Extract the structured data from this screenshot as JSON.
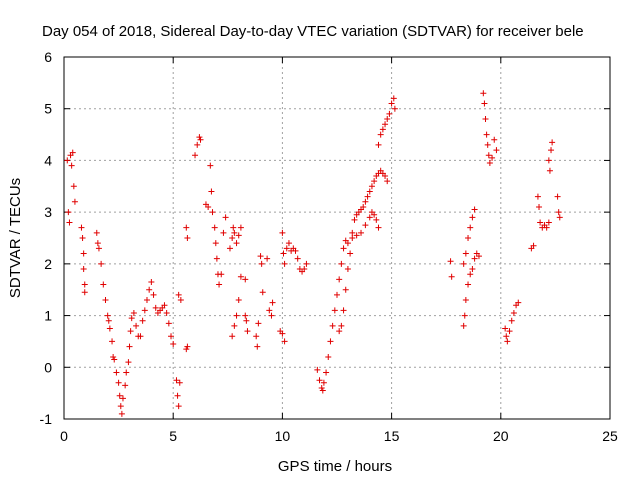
{
  "chart_data": {
    "type": "scatter",
    "title": "Day 054 of 2018, Sidereal Day-to-day VTEC variation (SDTVAR) for receiver bele",
    "xlabel": "GPS time / hours",
    "ylabel": "SDTVAR / TECUs",
    "xlim": [
      0,
      25
    ],
    "ylim": [
      -1,
      6
    ],
    "xticks": [
      "0",
      "5",
      "10",
      "15",
      "20",
      "25"
    ],
    "yticks": [
      "-1",
      "0",
      "1",
      "2",
      "3",
      "4",
      "5",
      "6"
    ],
    "grid": true,
    "marker": "+",
    "color": "#e00000",
    "series": [
      {
        "name": "SDTVAR",
        "points": [
          [
            0.15,
            4.0
          ],
          [
            0.2,
            3.0
          ],
          [
            0.25,
            2.8
          ],
          [
            0.3,
            4.1
          ],
          [
            0.35,
            3.9
          ],
          [
            0.4,
            4.15
          ],
          [
            0.45,
            3.5
          ],
          [
            0.5,
            3.2
          ],
          [
            0.8,
            2.7
          ],
          [
            0.85,
            2.5
          ],
          [
            0.9,
            2.2
          ],
          [
            0.9,
            1.9
          ],
          [
            0.95,
            1.6
          ],
          [
            0.95,
            1.45
          ],
          [
            1.5,
            2.6
          ],
          [
            1.55,
            2.4
          ],
          [
            1.6,
            2.3
          ],
          [
            1.7,
            2.0
          ],
          [
            1.8,
            1.6
          ],
          [
            1.9,
            1.3
          ],
          [
            2.0,
            1.0
          ],
          [
            2.05,
            0.9
          ],
          [
            2.1,
            0.75
          ],
          [
            2.2,
            0.5
          ],
          [
            2.25,
            0.2
          ],
          [
            2.3,
            0.15
          ],
          [
            2.4,
            -0.1
          ],
          [
            2.5,
            -0.3
          ],
          [
            2.55,
            -0.55
          ],
          [
            2.6,
            -0.75
          ],
          [
            2.65,
            -0.9
          ],
          [
            2.7,
            -0.6
          ],
          [
            2.8,
            -0.35
          ],
          [
            2.85,
            -0.1
          ],
          [
            2.95,
            0.1
          ],
          [
            3.0,
            0.4
          ],
          [
            3.05,
            0.7
          ],
          [
            3.1,
            0.95
          ],
          [
            3.2,
            1.05
          ],
          [
            3.3,
            0.8
          ],
          [
            3.4,
            0.6
          ],
          [
            3.5,
            0.6
          ],
          [
            3.6,
            0.9
          ],
          [
            3.7,
            1.1
          ],
          [
            3.8,
            1.3
          ],
          [
            3.9,
            1.5
          ],
          [
            4.0,
            1.65
          ],
          [
            4.1,
            1.4
          ],
          [
            4.2,
            1.15
          ],
          [
            4.3,
            1.05
          ],
          [
            4.4,
            1.1
          ],
          [
            4.5,
            1.15
          ],
          [
            4.6,
            1.2
          ],
          [
            4.7,
            1.05
          ],
          [
            4.8,
            0.85
          ],
          [
            4.9,
            0.6
          ],
          [
            5.0,
            0.45
          ],
          [
            5.15,
            -0.25
          ],
          [
            5.2,
            -0.55
          ],
          [
            5.25,
            -0.75
          ],
          [
            5.3,
            -0.3
          ],
          [
            5.25,
            1.4
          ],
          [
            5.35,
            1.3
          ],
          [
            5.6,
            2.7
          ],
          [
            5.65,
            2.5
          ],
          [
            5.6,
            0.35
          ],
          [
            5.65,
            0.4
          ],
          [
            6.0,
            4.1
          ],
          [
            6.1,
            4.3
          ],
          [
            6.2,
            4.45
          ],
          [
            6.25,
            4.4
          ],
          [
            6.5,
            3.15
          ],
          [
            6.6,
            3.1
          ],
          [
            6.7,
            3.9
          ],
          [
            6.75,
            3.4
          ],
          [
            6.8,
            3.0
          ],
          [
            6.9,
            2.7
          ],
          [
            6.95,
            2.4
          ],
          [
            7.0,
            2.1
          ],
          [
            7.05,
            1.8
          ],
          [
            7.1,
            1.6
          ],
          [
            7.2,
            1.8
          ],
          [
            7.3,
            2.6
          ],
          [
            7.4,
            2.9
          ],
          [
            7.6,
            2.3
          ],
          [
            7.7,
            2.5
          ],
          [
            7.75,
            2.7
          ],
          [
            7.8,
            2.6
          ],
          [
            7.9,
            2.4
          ],
          [
            8.0,
            2.55
          ],
          [
            8.1,
            2.7
          ],
          [
            7.7,
            0.6
          ],
          [
            7.8,
            0.8
          ],
          [
            7.9,
            1.0
          ],
          [
            8.0,
            1.3
          ],
          [
            8.1,
            1.75
          ],
          [
            8.3,
            1.7
          ],
          [
            8.3,
            1.0
          ],
          [
            8.35,
            0.9
          ],
          [
            8.4,
            0.7
          ],
          [
            8.8,
            0.6
          ],
          [
            8.85,
            0.4
          ],
          [
            8.9,
            0.85
          ],
          [
            9.0,
            2.15
          ],
          [
            9.05,
            2.0
          ],
          [
            9.1,
            1.45
          ],
          [
            9.3,
            2.1
          ],
          [
            9.4,
            1.1
          ],
          [
            9.5,
            1.0
          ],
          [
            9.55,
            1.25
          ],
          [
            10.0,
            2.6
          ],
          [
            10.05,
            2.2
          ],
          [
            10.1,
            2.0
          ],
          [
            10.2,
            2.3
          ],
          [
            10.3,
            2.4
          ],
          [
            10.4,
            2.25
          ],
          [
            10.5,
            2.3
          ],
          [
            10.6,
            2.25
          ],
          [
            10.7,
            2.1
          ],
          [
            10.8,
            1.9
          ],
          [
            10.9,
            1.85
          ],
          [
            11.0,
            1.9
          ],
          [
            11.1,
            2.0
          ],
          [
            9.9,
            0.7
          ],
          [
            10.0,
            0.65
          ],
          [
            10.1,
            0.5
          ],
          [
            11.6,
            -0.05
          ],
          [
            11.7,
            -0.25
          ],
          [
            11.8,
            -0.4
          ],
          [
            11.85,
            -0.45
          ],
          [
            11.9,
            -0.3
          ],
          [
            12.0,
            -0.1
          ],
          [
            12.1,
            0.2
          ],
          [
            12.2,
            0.5
          ],
          [
            12.3,
            0.8
          ],
          [
            12.4,
            1.1
          ],
          [
            12.5,
            1.4
          ],
          [
            12.6,
            1.7
          ],
          [
            12.7,
            2.0
          ],
          [
            12.8,
            2.3
          ],
          [
            12.9,
            2.45
          ],
          [
            12.6,
            0.7
          ],
          [
            12.7,
            0.8
          ],
          [
            12.8,
            1.1
          ],
          [
            12.9,
            1.5
          ],
          [
            13.0,
            1.9
          ],
          [
            13.1,
            2.2
          ],
          [
            13.2,
            2.6
          ],
          [
            13.3,
            2.85
          ],
          [
            13.4,
            2.95
          ],
          [
            13.5,
            3.0
          ],
          [
            13.6,
            3.05
          ],
          [
            13.0,
            2.4
          ],
          [
            13.2,
            2.5
          ],
          [
            13.4,
            2.55
          ],
          [
            13.6,
            2.6
          ],
          [
            13.8,
            2.75
          ],
          [
            14.0,
            2.9
          ],
          [
            14.1,
            3.0
          ],
          [
            14.2,
            2.95
          ],
          [
            14.3,
            2.85
          ],
          [
            14.4,
            2.7
          ],
          [
            13.7,
            3.1
          ],
          [
            13.8,
            3.2
          ],
          [
            13.9,
            3.3
          ],
          [
            14.0,
            3.4
          ],
          [
            14.1,
            3.5
          ],
          [
            14.2,
            3.6
          ],
          [
            14.3,
            3.7
          ],
          [
            14.4,
            3.75
          ],
          [
            14.5,
            3.8
          ],
          [
            14.6,
            3.75
          ],
          [
            14.7,
            3.7
          ],
          [
            14.8,
            3.6
          ],
          [
            14.4,
            4.3
          ],
          [
            14.5,
            4.5
          ],
          [
            14.6,
            4.6
          ],
          [
            14.7,
            4.7
          ],
          [
            14.8,
            4.8
          ],
          [
            14.9,
            4.9
          ],
          [
            15.0,
            5.1
          ],
          [
            15.1,
            5.2
          ],
          [
            15.15,
            5.0
          ],
          [
            17.7,
            2.05
          ],
          [
            17.75,
            1.75
          ],
          [
            18.3,
            0.8
          ],
          [
            18.35,
            1.0
          ],
          [
            18.4,
            1.3
          ],
          [
            18.5,
            1.6
          ],
          [
            18.6,
            1.8
          ],
          [
            18.7,
            1.9
          ],
          [
            18.8,
            2.1
          ],
          [
            18.9,
            2.2
          ],
          [
            19.0,
            2.15
          ],
          [
            18.3,
            2.0
          ],
          [
            18.4,
            2.2
          ],
          [
            18.5,
            2.5
          ],
          [
            18.6,
            2.7
          ],
          [
            18.7,
            2.9
          ],
          [
            18.8,
            3.05
          ],
          [
            19.2,
            5.3
          ],
          [
            19.25,
            5.1
          ],
          [
            19.3,
            4.8
          ],
          [
            19.35,
            4.5
          ],
          [
            19.4,
            4.3
          ],
          [
            19.45,
            4.1
          ],
          [
            19.5,
            3.95
          ],
          [
            19.6,
            4.05
          ],
          [
            19.7,
            4.4
          ],
          [
            19.8,
            4.2
          ],
          [
            20.2,
            0.75
          ],
          [
            20.25,
            0.6
          ],
          [
            20.3,
            0.5
          ],
          [
            20.4,
            0.7
          ],
          [
            20.5,
            0.9
          ],
          [
            20.6,
            1.05
          ],
          [
            20.7,
            1.2
          ],
          [
            20.8,
            1.25
          ],
          [
            21.4,
            2.3
          ],
          [
            21.5,
            2.35
          ],
          [
            21.7,
            3.3
          ],
          [
            21.75,
            3.1
          ],
          [
            21.8,
            2.8
          ],
          [
            21.9,
            2.7
          ],
          [
            22.0,
            2.75
          ],
          [
            22.1,
            2.7
          ],
          [
            22.2,
            2.8
          ],
          [
            22.2,
            4.0
          ],
          [
            22.25,
            3.8
          ],
          [
            22.3,
            4.2
          ],
          [
            22.35,
            4.35
          ],
          [
            22.6,
            3.3
          ],
          [
            22.65,
            3.0
          ],
          [
            22.7,
            2.9
          ]
        ]
      }
    ]
  }
}
